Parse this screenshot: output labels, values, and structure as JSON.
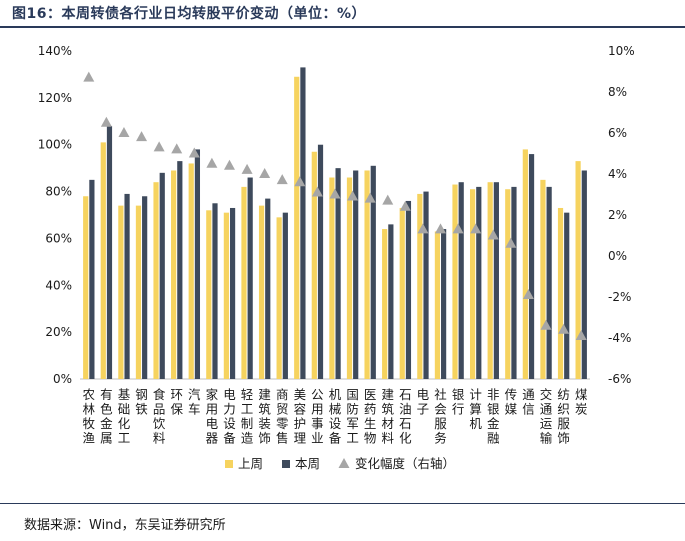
{
  "title": "图16：本周转债各行业日均转股平价变动（单位：%）",
  "source": "数据来源：Wind，东吴证券研究所",
  "colors": {
    "prev": "#F6D35F",
    "curr": "#3E4A5C",
    "change": "#A6A6A6"
  },
  "chart_data": {
    "type": "bar",
    "categories": [
      "农林牧渔",
      "有色金属",
      "基础化工",
      "钢铁",
      "食品饮料",
      "环保",
      "汽车",
      "家用电器",
      "电力设备",
      "轻工制造",
      "建筑装饰",
      "商贸零售",
      "美容护理",
      "公用事业",
      "机械设备",
      "国防军工",
      "医药生物",
      "建筑材料",
      "石油石化",
      "电子",
      "社会服务",
      "银行",
      "计算机",
      "非银金融",
      "传媒",
      "通信",
      "交通运输",
      "纺织服饰",
      "煤炭"
    ],
    "series": [
      {
        "name": "上周",
        "axis": "left",
        "values": [
          78,
          101,
          74,
          74,
          84,
          89,
          92,
          72,
          71,
          82,
          74,
          69,
          129,
          97,
          86,
          86,
          89,
          64,
          73,
          79,
          63,
          83,
          81,
          84,
          81,
          98,
          85,
          73,
          93
        ]
      },
      {
        "name": "本周",
        "axis": "left",
        "values": [
          85,
          108,
          79,
          78,
          88,
          93,
          98,
          75,
          73,
          86,
          77,
          71,
          133,
          100,
          90,
          89,
          91,
          66,
          76,
          80,
          64,
          84,
          82,
          84,
          82,
          96,
          82,
          71,
          89
        ]
      },
      {
        "name": "变化幅度（右轴）",
        "axis": "right",
        "type": "scatter",
        "values": [
          8.7,
          6.5,
          6.0,
          5.8,
          5.3,
          5.2,
          5.0,
          4.5,
          4.4,
          4.2,
          4.0,
          3.7,
          3.6,
          3.1,
          3.0,
          2.9,
          2.8,
          2.7,
          2.4,
          1.3,
          1.3,
          1.3,
          1.3,
          1.0,
          0.6,
          -1.9,
          -3.4,
          -3.6,
          -3.9
        ]
      }
    ],
    "y_left": {
      "min": 0,
      "max": 140,
      "step": 20,
      "ticks": [
        "0%",
        "20%",
        "40%",
        "60%",
        "80%",
        "100%",
        "120%",
        "140%"
      ]
    },
    "y_right": {
      "min": -6,
      "max": 10,
      "step": 2,
      "ticks": [
        "-6%",
        "-4%",
        "-2%",
        "0%",
        "2%",
        "4%",
        "6%",
        "8%",
        "10%"
      ]
    },
    "legend": [
      "上周",
      "本周",
      "变化幅度（右轴）"
    ],
    "legend_position": "bottom",
    "grid": false
  }
}
